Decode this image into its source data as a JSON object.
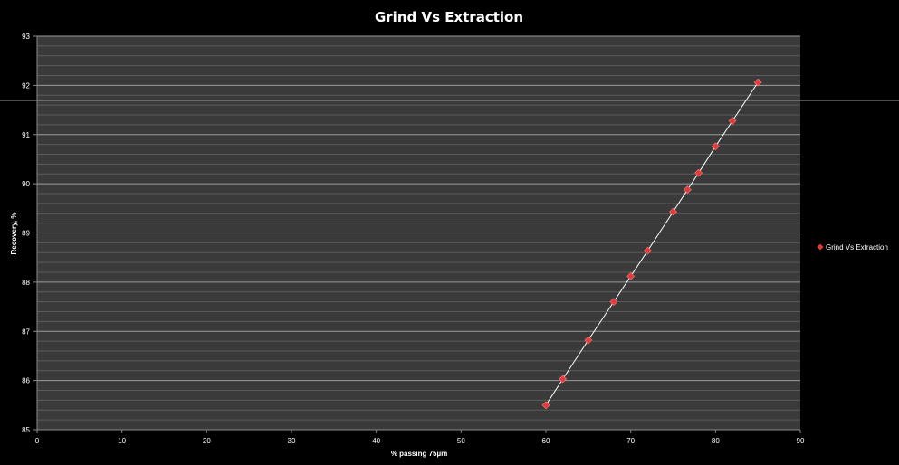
{
  "chart_data": {
    "type": "scatter",
    "title": "Grind Vs Extraction",
    "xlabel": "% passing 75µm",
    "ylabel": "Recovery, %",
    "xlim": [
      0,
      90
    ],
    "ylim": [
      85,
      93
    ],
    "x_ticks": [
      "0",
      "10",
      "20",
      "30",
      "40",
      "50",
      "60",
      "70",
      "80",
      "90"
    ],
    "y_ticks": [
      "85",
      "86",
      "87",
      "88",
      "89",
      "90",
      "91",
      "92",
      "93"
    ],
    "grid": true,
    "legend_position": "right",
    "series": [
      {
        "name": "Grind Vs Extraction",
        "marker": "diamond",
        "line": true,
        "x": [
          60,
          62,
          65,
          68,
          70,
          72,
          75,
          76.7,
          78,
          80,
          82,
          85
        ],
        "y": [
          85.5,
          86.03,
          86.82,
          87.6,
          88.12,
          88.64,
          89.43,
          89.88,
          90.22,
          90.76,
          91.28,
          92.06
        ]
      }
    ],
    "colors": {
      "background": "#000000",
      "plot_area": "#3a3a3a",
      "major_grid": "#9a9a9a",
      "minor_grid": "#5a5a5a",
      "marker": "#e23a3a",
      "line": "#ffffff",
      "text": "#ffffff"
    }
  }
}
